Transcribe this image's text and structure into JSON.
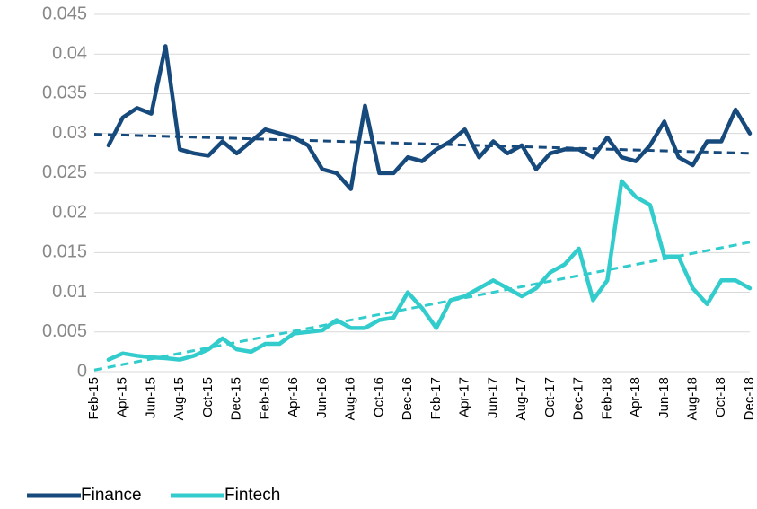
{
  "chart_data": {
    "type": "line",
    "categories": [
      "Feb-15",
      null,
      "Apr-15",
      null,
      "Jun-15",
      null,
      "Aug-15",
      null,
      "Oct-15",
      null,
      "Dec-15",
      null,
      "Feb-16",
      null,
      "Apr-16",
      null,
      "Jun-16",
      null,
      "Aug-16",
      null,
      "Oct-16",
      null,
      "Dec-16",
      null,
      "Feb-17",
      null,
      "Apr-17",
      null,
      "Jun-17",
      null,
      "Aug-17",
      null,
      "Oct-17",
      null,
      "Dec-17",
      null,
      "Feb-18",
      null,
      "Apr-18",
      null,
      "Jun-18",
      null,
      "Aug-18",
      null,
      "Oct-18",
      null,
      "Dec-18"
    ],
    "series": [
      {
        "name": "Finance",
        "color": "#174a7c",
        "trend": [
          0.0299,
          0.0275
        ],
        "values": [
          null,
          0.0285,
          0.032,
          0.0332,
          0.0325,
          0.041,
          0.028,
          0.0275,
          0.0272,
          0.029,
          0.0275,
          0.029,
          0.0305,
          0.03,
          0.0295,
          0.0285,
          0.0255,
          0.025,
          0.023,
          0.0335,
          0.025,
          0.025,
          0.027,
          0.0265,
          0.028,
          0.029,
          0.0305,
          0.027,
          0.029,
          0.0275,
          0.0285,
          0.0255,
          0.0275,
          0.028,
          0.028,
          0.027,
          0.0295,
          0.027,
          0.0265,
          0.0285,
          0.0315,
          0.027,
          0.026,
          0.029,
          0.029,
          0.033,
          0.03
        ]
      },
      {
        "name": "Fintech",
        "color": "#33cccc",
        "trend": [
          0.0002,
          0.0163
        ],
        "values": [
          null,
          0.0015,
          0.0023,
          0.002,
          0.0018,
          0.0017,
          0.0015,
          0.002,
          0.0028,
          0.0042,
          0.0028,
          0.0025,
          0.0035,
          0.0035,
          0.0048,
          0.005,
          0.0052,
          0.0065,
          0.0055,
          0.0055,
          0.0065,
          0.0068,
          0.01,
          0.008,
          0.0055,
          0.009,
          0.0095,
          0.0105,
          0.0115,
          0.0105,
          0.0095,
          0.0105,
          0.0125,
          0.0135,
          0.0155,
          0.009,
          0.0115,
          0.024,
          0.022,
          0.021,
          0.0145,
          0.0145,
          0.0105,
          0.0085,
          0.0115,
          0.0115,
          0.0105
        ]
      }
    ],
    "ylim": [
      0,
      0.045
    ],
    "yticks": [
      0,
      0.005,
      0.01,
      0.015,
      0.02,
      0.025,
      0.03,
      0.035,
      0.04,
      0.045
    ],
    "grid": true
  }
}
